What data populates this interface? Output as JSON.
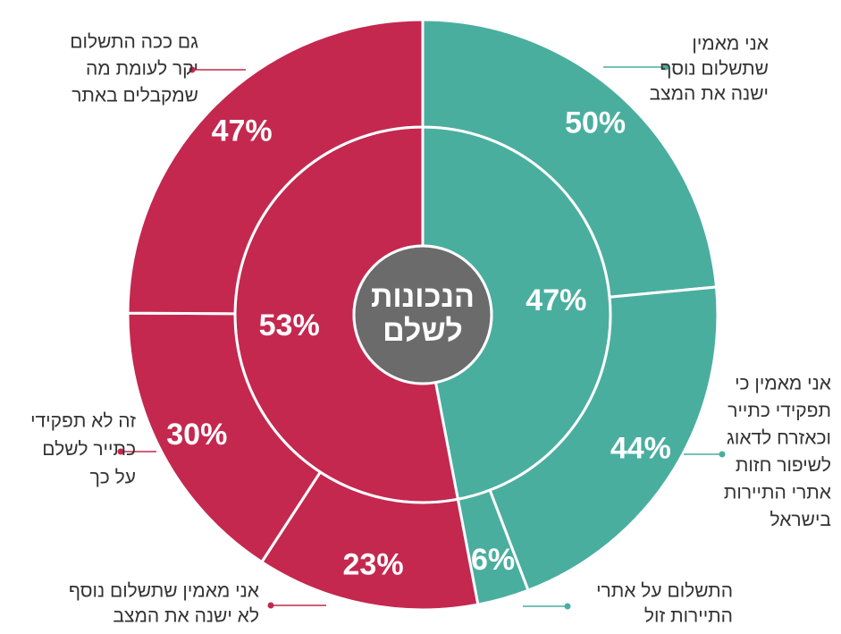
{
  "chart_data": {
    "type": "sunburst",
    "title": [
      "הנכונות",
      "לשלם"
    ],
    "inner": {
      "values": [
        47,
        53
      ],
      "value_labels": [
        "47%",
        "53%"
      ],
      "colors": [
        "#4aae9f",
        "#c4284f"
      ]
    },
    "outer": [
      {
        "values": [
          50,
          44,
          6
        ],
        "value_labels": [
          "50%",
          "44%",
          "6%"
        ],
        "labels": [
          [
            "אני מאמין",
            "שתשלום נוסף",
            "ישנה את המצב"
          ],
          [
            "אני מאמין כי",
            "תפקידי כתייר",
            "וכאזרח לדאוג",
            "לשיפור חזות",
            "אתרי התיירות",
            "בישראל"
          ],
          [
            "התשלום על אתרי",
            "התיירות זול"
          ]
        ]
      },
      {
        "values": [
          23,
          30,
          47
        ],
        "value_labels": [
          "23%",
          "30%",
          "47%"
        ],
        "labels": [
          [
            "אני מאמין שתשלום נוסף",
            "לא ישנה את המצב"
          ],
          [
            "זה לא תפקידי",
            "כתייר לשלם",
            "על כך"
          ],
          [
            "גם ככה התשלום",
            "יקר לעומת מה",
            "שמקבלים באתר"
          ]
        ]
      }
    ],
    "center_color": "#6b6b6b"
  }
}
